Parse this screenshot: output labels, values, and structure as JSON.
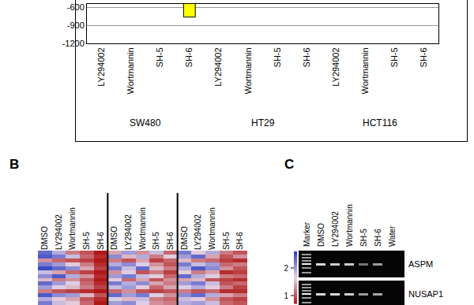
{
  "chart_data": [
    {
      "type": "bar",
      "categories": [
        "LY294002",
        "Wortmannin",
        "SH-5",
        "SH-6",
        "LY294002",
        "Wortmannin",
        "SH-5",
        "SH-6",
        "LY294002",
        "Wortmannin",
        "SH-5",
        "SH-6"
      ],
      "groups": [
        "SW480",
        "HT29",
        "HCT116"
      ],
      "values": [
        null,
        null,
        null,
        -760,
        null,
        null,
        null,
        null,
        null,
        null,
        null,
        null
      ],
      "color": "#ffff00",
      "ylim": [
        -1200,
        -540
      ],
      "yticks": [
        -1200,
        -900,
        -600
      ],
      "grid": true
    },
    {
      "type": "heatmap",
      "column_groups": [
        [
          "DMSO",
          "LY294002",
          "Wortmannin",
          "SH-5",
          "SH-6"
        ],
        [
          "DMSO",
          "LY294002",
          "Wortmannin",
          "SH-5",
          "SH-6"
        ],
        [
          "DMSO",
          "LY294002",
          "Wortmannin",
          "SH-5",
          "SH-6"
        ]
      ],
      "cells": [
        [
          2.3,
          1.9,
          1.2,
          1.0,
          0.7,
          1.4,
          2.0,
          1.3,
          1.8,
          1.1,
          2.2,
          1.6,
          1.9,
          1.2,
          1.0
        ],
        [
          2.4,
          2.2,
          1.8,
          1.1,
          0.8,
          2.1,
          1.5,
          1.9,
          1.2,
          1.6,
          2.0,
          2.3,
          1.4,
          1.0,
          1.3
        ],
        [
          1.3,
          1.1,
          1.0,
          0.9,
          0.7,
          1.2,
          1.0,
          1.4,
          0.9,
          1.1,
          1.5,
          1.2,
          1.1,
          0.9,
          0.8
        ],
        [
          2.2,
          2.0,
          1.6,
          1.2,
          0.8,
          1.9,
          2.1,
          1.7,
          1.3,
          1.0,
          2.2,
          1.8,
          2.0,
          1.1,
          1.2
        ],
        [
          2.5,
          2.3,
          2.1,
          1.4,
          0.9,
          2.2,
          1.8,
          2.3,
          1.5,
          1.2,
          1.9,
          2.4,
          2.1,
          1.3,
          1.0
        ],
        [
          1.8,
          1.4,
          1.1,
          0.9,
          0.7,
          1.3,
          1.7,
          1.0,
          1.2,
          0.9,
          1.6,
          1.2,
          1.4,
          0.8,
          0.9
        ],
        [
          2.1,
          2.4,
          1.9,
          1.3,
          0.8,
          2.0,
          2.2,
          1.8,
          1.6,
          1.1,
          2.3,
          1.9,
          1.7,
          1.2,
          1.1
        ],
        [
          1.5,
          1.2,
          1.3,
          1.0,
          0.7,
          1.6,
          1.1,
          1.4,
          1.0,
          1.3,
          1.4,
          1.5,
          1.0,
          0.9,
          0.8
        ],
        [
          2.3,
          2.0,
          1.7,
          1.1,
          0.8,
          2.2,
          1.9,
          2.1,
          1.4,
          1.2,
          2.0,
          2.2,
          1.8,
          1.0,
          1.1
        ],
        [
          2.0,
          1.7,
          1.5,
          1.2,
          0.9,
          1.8,
          2.0,
          1.6,
          1.1,
          1.4,
          1.7,
          1.9,
          1.6,
          1.2,
          0.9
        ],
        [
          1.2,
          1.0,
          0.9,
          0.8,
          0.7,
          1.1,
          1.3,
          1.0,
          0.9,
          1.0,
          1.2,
          1.0,
          1.1,
          0.8,
          0.8
        ],
        [
          2.4,
          2.1,
          2.0,
          1.5,
          1.0,
          2.3,
          2.0,
          2.2,
          1.7,
          1.3,
          2.1,
          2.3,
          1.9,
          1.4,
          1.2
        ],
        [
          1.9,
          1.6,
          1.4,
          1.0,
          0.8,
          1.7,
          1.5,
          1.8,
          1.2,
          1.1,
          1.8,
          1.6,
          1.3,
          1.0,
          0.9
        ],
        [
          2.2,
          1.8,
          1.6,
          1.1,
          0.7,
          2.0,
          2.1,
          1.7,
          1.3,
          1.2,
          1.9,
          2.0,
          1.8,
          1.1,
          1.0
        ]
      ],
      "colorbar": {
        "range": [
          0.7,
          2.6
        ],
        "ticks": [
          1,
          2
        ]
      },
      "tick_labels": "x"
    }
  ],
  "panel_labels": [
    "B",
    "C"
  ],
  "gel": {
    "lanes": [
      "Marker",
      "DMSO",
      "LY294002",
      "Wortmannin",
      "SH-5",
      "SH-6",
      "Water"
    ],
    "bands": [
      {
        "name": "ASPM",
        "intensity": [
          null,
          0.85,
          0.8,
          0.8,
          0.45,
          0.6,
          0
        ]
      },
      {
        "name": "NUSAP1",
        "intensity": [
          null,
          0.85,
          0.85,
          0.8,
          0.6,
          0.65,
          0
        ]
      }
    ]
  }
}
